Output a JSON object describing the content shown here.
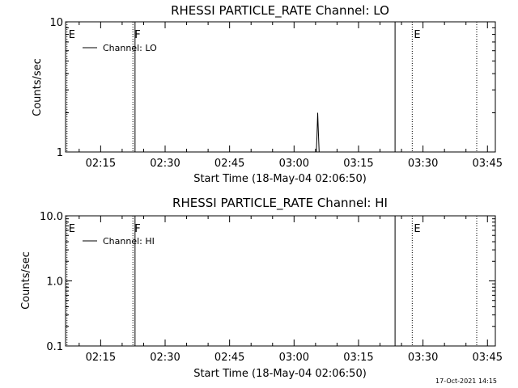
{
  "footer": {
    "timestamp": "17-Oct-2021 14:15"
  },
  "chart_data": [
    {
      "type": "line",
      "title": "RHESSI PARTICLE_RATE Channel: LO",
      "xlabel": "Start Time (18-May-04 02:06:50)",
      "ylabel": "Counts/sec",
      "yscale": "log",
      "ylim": [
        1,
        10
      ],
      "xlim": [
        "02:06:50",
        "03:46:50"
      ],
      "yticks": [
        {
          "value": 1,
          "label": "1"
        },
        {
          "value": 10,
          "label": "10"
        }
      ],
      "xticks": [
        {
          "time": "02:15",
          "label": "02:15"
        },
        {
          "time": "02:30",
          "label": "02:30"
        },
        {
          "time": "02:45",
          "label": "02:45"
        },
        {
          "time": "03:00",
          "label": "03:00"
        },
        {
          "time": "03:15",
          "label": "03:15"
        },
        {
          "time": "03:30",
          "label": "03:30"
        },
        {
          "time": "03:45",
          "label": "03:45"
        }
      ],
      "legend": {
        "entry": "Channel: LO",
        "placement": "top-left"
      },
      "series": [
        {
          "name": "Channel: LO",
          "points": [
            [
              "03:05:10",
              1.0
            ],
            [
              "03:05:20",
              1.3
            ],
            [
              "03:05:30",
              2.0
            ],
            [
              "03:05:40",
              1.4
            ],
            [
              "03:05:50",
              1.0
            ]
          ]
        }
      ],
      "markers": [
        {
          "time": "02:07:10",
          "style": "dotted",
          "label": "E"
        },
        {
          "time": "02:22:30",
          "style": "dotted",
          "label": "F"
        },
        {
          "time": "02:23:00",
          "style": "solid",
          "label": ""
        },
        {
          "time": "03:23:30",
          "style": "solid",
          "label": ""
        },
        {
          "time": "03:27:30",
          "style": "dotted",
          "label": "E"
        },
        {
          "time": "03:42:30",
          "style": "dotted",
          "label": ""
        }
      ]
    },
    {
      "type": "line",
      "title": "RHESSI PARTICLE_RATE Channel: HI",
      "xlabel": "Start Time (18-May-04 02:06:50)",
      "ylabel": "Counts/sec",
      "yscale": "log",
      "ylim": [
        0.1,
        10
      ],
      "xlim": [
        "02:06:50",
        "03:46:50"
      ],
      "yticks": [
        {
          "value": 0.1,
          "label": "0.1"
        },
        {
          "value": 1,
          "label": "1.0"
        },
        {
          "value": 10,
          "label": "10.0"
        }
      ],
      "xticks": [
        {
          "time": "02:15",
          "label": "02:15"
        },
        {
          "time": "02:30",
          "label": "02:30"
        },
        {
          "time": "02:45",
          "label": "02:45"
        },
        {
          "time": "03:00",
          "label": "03:00"
        },
        {
          "time": "03:15",
          "label": "03:15"
        },
        {
          "time": "03:30",
          "label": "03:30"
        },
        {
          "time": "03:45",
          "label": "03:45"
        }
      ],
      "legend": {
        "entry": "Channel: HI",
        "placement": "top-left"
      },
      "series": [
        {
          "name": "Channel: HI",
          "points": []
        }
      ],
      "markers": [
        {
          "time": "02:07:10",
          "style": "dotted",
          "label": "E"
        },
        {
          "time": "02:22:30",
          "style": "dotted",
          "label": "F"
        },
        {
          "time": "02:23:00",
          "style": "solid",
          "label": ""
        },
        {
          "time": "03:23:30",
          "style": "solid",
          "label": ""
        },
        {
          "time": "03:27:30",
          "style": "dotted",
          "label": "E"
        },
        {
          "time": "03:42:30",
          "style": "dotted",
          "label": ""
        }
      ]
    }
  ]
}
